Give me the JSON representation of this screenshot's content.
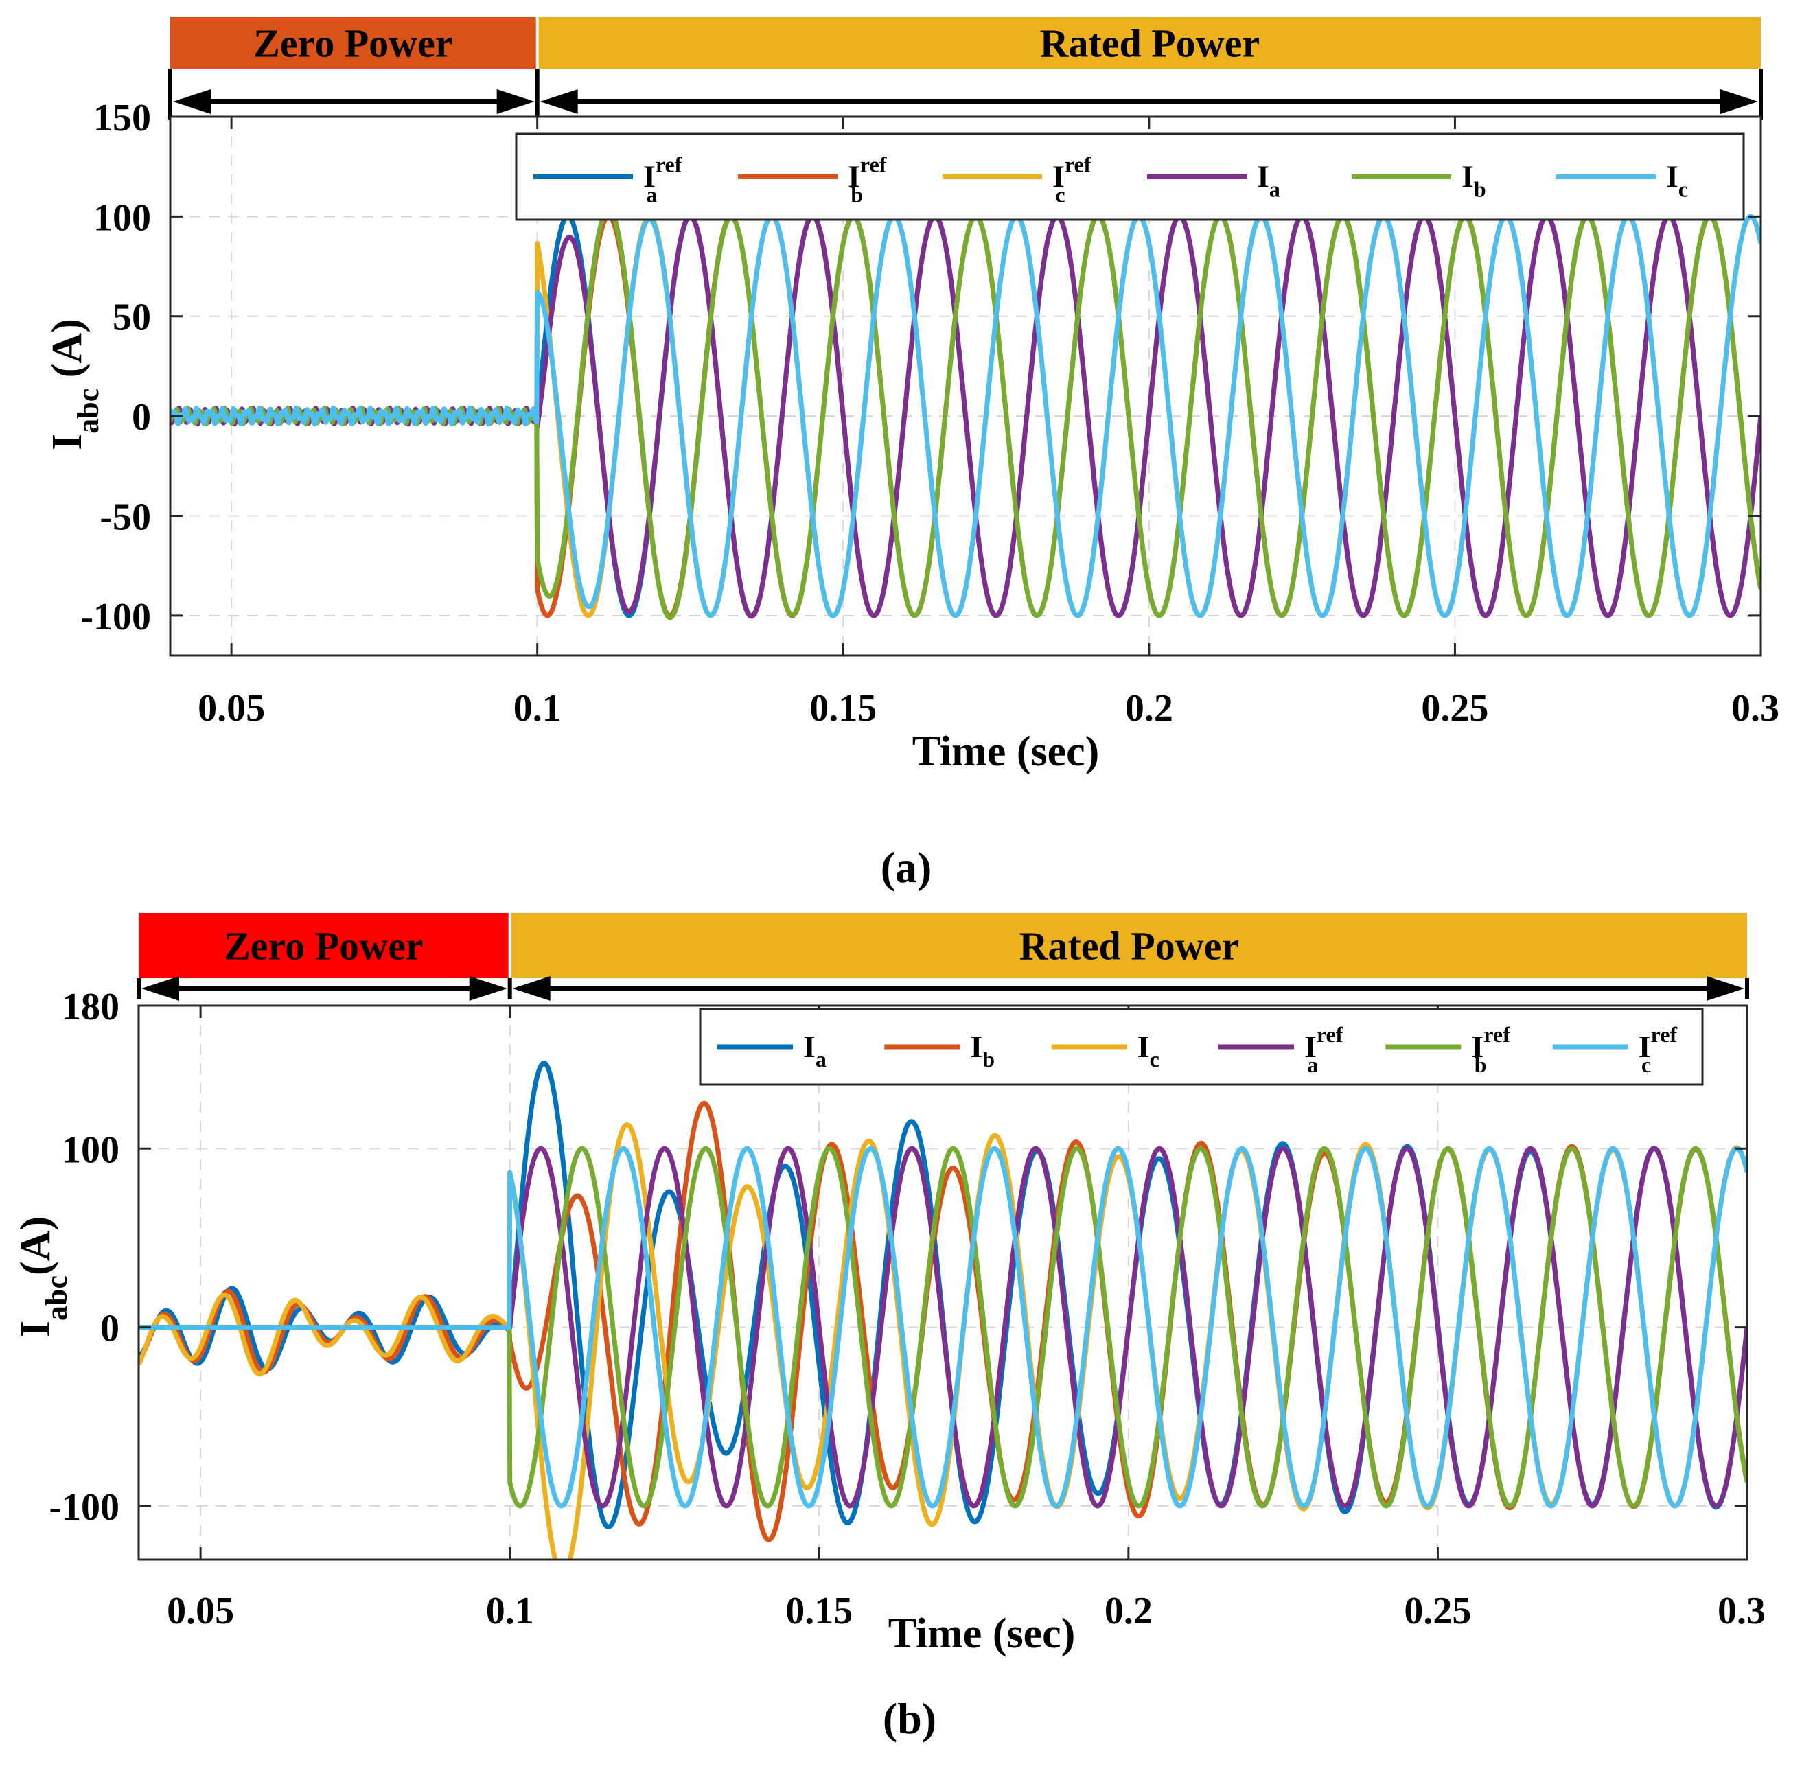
{
  "figure": {
    "captions": [
      "(a)",
      "(b)"
    ]
  },
  "chart_data": [
    {
      "type": "line",
      "panel": "a",
      "caption": "(a)",
      "xlabel": "Time (sec)",
      "ylabel": {
        "base": "I",
        "sub": "abc",
        "unit": " (A)"
      },
      "xlim": [
        0.04,
        0.3
      ],
      "ylim": [
        -120,
        150
      ],
      "xticks": [
        0.05,
        0.1,
        0.15,
        0.2,
        0.25,
        0.3
      ],
      "xtick_labels": [
        "0.05",
        "0.1",
        "0.15",
        "0.2",
        "0.25",
        "0.3"
      ],
      "yticks": [
        150,
        100,
        50,
        0,
        -50,
        -100
      ],
      "ytick_labels": [
        "150",
        "100",
        "50",
        "0",
        "-50",
        "-100"
      ],
      "grid": true,
      "legend_position": "top-right",
      "regions": [
        {
          "label": "Zero Power",
          "start": 0.04,
          "end": 0.1,
          "color": "#D95319"
        },
        {
          "label": "Rated Power",
          "start": 0.1,
          "end": 0.3,
          "color": "#EDB120"
        }
      ],
      "step_time": 0.1,
      "frequency_hz": 50,
      "amplitude": 100,
      "series": [
        {
          "name": "Ia_ref",
          "base": "I",
          "sub": "a",
          "sup": "ref",
          "color": "#0072BD",
          "phase_deg": 0,
          "zero_noise": 0.8,
          "transient": 0
        },
        {
          "name": "Ib_ref",
          "base": "I",
          "sub": "b",
          "sup": "ref",
          "color": "#D95319",
          "phase_deg": -120,
          "zero_noise": 0.8,
          "transient": 0
        },
        {
          "name": "Ic_ref",
          "base": "I",
          "sub": "c",
          "sup": "ref",
          "color": "#EDB120",
          "phase_deg": 120,
          "zero_noise": 0.8,
          "transient": 0
        },
        {
          "name": "Ia",
          "base": "I",
          "sub": "a",
          "sup": "",
          "color": "#7E2F8E",
          "phase_deg": 0,
          "zero_noise": 2.5,
          "transient": 8
        },
        {
          "name": "Ib",
          "base": "I",
          "sub": "b",
          "sup": "",
          "color": "#77AC30",
          "phase_deg": -120,
          "zero_noise": 2.5,
          "transient": 12
        },
        {
          "name": "Ic",
          "base": "I",
          "sub": "c",
          "sup": "",
          "color": "#4DBEEE",
          "phase_deg": 120,
          "zero_noise": 2.5,
          "transient": 6
        }
      ]
    },
    {
      "type": "line",
      "panel": "b",
      "caption": "(b)",
      "xlabel": "Time (sec)",
      "ylabel": {
        "base": "I",
        "sub": "abc",
        "unit": "(A)"
      },
      "xlim": [
        0.04,
        0.3
      ],
      "ylim": [
        -130,
        180
      ],
      "xticks": [
        0.05,
        0.1,
        0.15,
        0.2,
        0.25,
        0.3
      ],
      "xtick_labels": [
        "0.05",
        "0.1",
        "0.15",
        "0.2",
        "0.25",
        "0.3"
      ],
      "yticks": [
        180,
        100,
        0,
        -100
      ],
      "ytick_labels": [
        "180",
        "100",
        "0",
        "-100"
      ],
      "grid": true,
      "legend_position": "top-right",
      "regions": [
        {
          "label": "Zero Power",
          "start": 0.04,
          "end": 0.1,
          "color": "#FF0000"
        },
        {
          "label": "Rated Power",
          "start": 0.1,
          "end": 0.3,
          "color": "#EDB120"
        }
      ],
      "step_time": 0.1,
      "frequency_hz": 50,
      "amplitude": 100,
      "series": [
        {
          "name": "Ia",
          "base": "I",
          "sub": "a",
          "sup": "",
          "color": "#0072BD",
          "phase_deg": 0,
          "zero_mode": "osc",
          "transient": 65
        },
        {
          "name": "Ib",
          "base": "I",
          "sub": "b",
          "sup": "",
          "color": "#D95319",
          "phase_deg": -120,
          "zero_mode": "osc",
          "transient": 55
        },
        {
          "name": "Ic",
          "base": "I",
          "sub": "c",
          "sup": "",
          "color": "#EDB120",
          "phase_deg": 120,
          "zero_mode": "osc",
          "transient": 50
        },
        {
          "name": "Ia_ref",
          "base": "I",
          "sub": "a",
          "sup": "ref",
          "color": "#7E2F8E",
          "phase_deg": 0,
          "zero_mode": "flat",
          "transient": 0
        },
        {
          "name": "Ib_ref",
          "base": "I",
          "sub": "b",
          "sup": "ref",
          "color": "#77AC30",
          "phase_deg": -120,
          "zero_mode": "flat",
          "transient": 0
        },
        {
          "name": "Ic_ref",
          "base": "I",
          "sub": "c",
          "sup": "ref",
          "color": "#4DBEEE",
          "phase_deg": 120,
          "zero_mode": "flat",
          "transient": 0
        }
      ]
    }
  ]
}
